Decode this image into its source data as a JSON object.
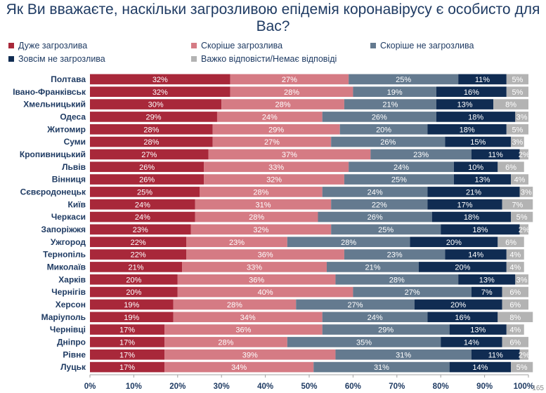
{
  "chart_data": {
    "type": "bar",
    "orientation": "horizontal",
    "stacked": "percent",
    "title": "Як Ви вважаєте, наскільки загрозливою епідемія коронавірусу є особисто для Вас?",
    "categories": [
      "Полтава",
      "Івано-Франківськ",
      "Хмельницький",
      "Одеса",
      "Житомир",
      "Суми",
      "Кропивницький",
      "Львів",
      "Вінниця",
      "Сєвєродонецьк",
      "Київ",
      "Черкаси",
      "Запоріжжя",
      "Ужгород",
      "Тернопіль",
      "Миколаїв",
      "Харків",
      "Чернігів",
      "Херсон",
      "Маріуполь",
      "Чернівці",
      "Дніпро",
      "Рівне",
      "Луцьк"
    ],
    "series": [
      {
        "name": "Дуже загрозлива",
        "color": "#a8283a",
        "values": [
          32,
          32,
          30,
          29,
          28,
          28,
          27,
          26,
          26,
          25,
          24,
          24,
          23,
          22,
          22,
          21,
          20,
          20,
          19,
          19,
          17,
          17,
          17,
          17
        ]
      },
      {
        "name": "Скоріше загрозлива",
        "color": "#d57b84",
        "values": [
          27,
          28,
          28,
          24,
          29,
          27,
          37,
          33,
          32,
          28,
          31,
          28,
          32,
          23,
          36,
          33,
          36,
          40,
          28,
          34,
          36,
          28,
          39,
          34
        ]
      },
      {
        "name": "Скоріше не загрозлива",
        "color": "#647a8f",
        "values": [
          25,
          19,
          21,
          26,
          20,
          26,
          23,
          24,
          25,
          24,
          22,
          26,
          25,
          28,
          23,
          21,
          28,
          27,
          27,
          24,
          29,
          35,
          31,
          31
        ]
      },
      {
        "name": "Зовсім не загрозлива",
        "color": "#102c52",
        "values": [
          11,
          16,
          13,
          18,
          18,
          15,
          11,
          10,
          13,
          21,
          17,
          18,
          18,
          20,
          14,
          20,
          13,
          7,
          20,
          16,
          13,
          14,
          11,
          14
        ]
      },
      {
        "name": "Важко відповісти/Немає відповіді",
        "color": "#b3b3b3",
        "values": [
          5,
          5,
          8,
          3,
          5,
          3,
          2,
          6,
          4,
          3,
          7,
          5,
          2,
          6,
          4,
          4,
          3,
          6,
          6,
          8,
          4,
          6,
          2,
          5
        ]
      }
    ],
    "xlim": [
      0,
      100
    ],
    "x_ticks": [
      "0%",
      "10%",
      "20%",
      "30%",
      "40%",
      "50%",
      "60%",
      "70%",
      "80%",
      "90%",
      "100%"
    ],
    "value_suffix": "%",
    "legend_position": "top",
    "grid": false
  },
  "page_number": "165"
}
